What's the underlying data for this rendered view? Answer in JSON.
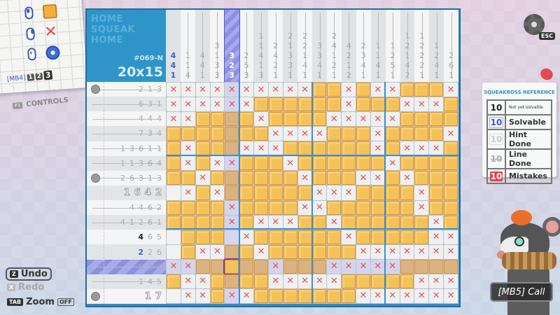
{
  "puzzle": {
    "title_lines": [
      "HOME",
      "SQUEAK",
      "HOME"
    ],
    "code": "#069-N",
    "size": "20x15",
    "highlighted_column": 5,
    "highlighted_row": 13,
    "cursor": {
      "row": 13,
      "col": 5
    }
  },
  "controls": {
    "mb4_label": "[MB4]",
    "mb4_options": [
      "1",
      "2",
      "3"
    ],
    "mb4_selected": "3",
    "controls_key": "F1",
    "controls_label": "CONTROLS",
    "tools": [
      {
        "mouse": "left-click",
        "action": "fill"
      },
      {
        "mouse": "right-click",
        "action": "cross"
      },
      {
        "mouse": "middle-click",
        "action": "dot"
      }
    ]
  },
  "actions": {
    "undo_key": "Z",
    "undo_label": "Undo",
    "redo_key": "X",
    "redo_label": "Redo",
    "zoom_key": "TAB",
    "zoom_label": "Zoom",
    "zoom_state": "OFF"
  },
  "column_clues": [
    {
      "nums": [
        "4",
        "4",
        "1"
      ],
      "state": "solvable"
    },
    {
      "nums": [
        "1",
        "1",
        "4"
      ],
      "state": "done"
    },
    {
      "nums": [
        "4",
        "4",
        "1"
      ],
      "state": "done"
    },
    {
      "nums": [
        "3",
        "1",
        "3",
        "3"
      ],
      "state": "done"
    },
    {
      "nums": [
        "3",
        "2",
        "3"
      ],
      "state": "highlighted"
    },
    {
      "nums": [
        "2",
        "5",
        "3"
      ],
      "state": "done"
    },
    {
      "nums": [
        "1",
        "1",
        "4",
        "1",
        "3"
      ],
      "state": "done"
    },
    {
      "nums": [
        "2",
        "4",
        "2",
        "1"
      ],
      "state": "done"
    },
    {
      "nums": [
        "2",
        "1",
        "3",
        "3",
        "1"
      ],
      "state": "done"
    },
    {
      "nums": [
        "2",
        "2",
        "1",
        "4",
        "1"
      ],
      "state": "done"
    },
    {
      "nums": [
        "3",
        "3",
        "4",
        "1"
      ],
      "state": "done"
    },
    {
      "nums": [
        "2",
        "4",
        "1",
        "2",
        "1"
      ],
      "state": "done"
    },
    {
      "nums": [
        "4",
        "2",
        "1",
        "2"
      ],
      "state": "done"
    },
    {
      "nums": [
        "2",
        "3",
        "4",
        "1"
      ],
      "state": "done"
    },
    {
      "nums": [
        "1",
        "1",
        "4",
        "1"
      ],
      "state": "done"
    },
    {
      "nums": [
        "1",
        "2",
        "5",
        "1"
      ],
      "state": "done"
    },
    {
      "nums": [
        "1",
        "2",
        "1",
        "4",
        "2"
      ],
      "state": "done"
    },
    {
      "nums": [
        "1",
        "2",
        "2",
        "2",
        "1"
      ],
      "state": "done"
    },
    {
      "nums": [
        "1",
        "2",
        "4",
        "1"
      ],
      "state": "done"
    },
    {
      "nums": [
        "2",
        "6",
        "1"
      ],
      "state": "done"
    }
  ],
  "row_clues": [
    {
      "nums": [
        "2",
        "1",
        "3"
      ],
      "state": "done"
    },
    {
      "nums": [
        "6",
        "3",
        "1"
      ],
      "state": "done"
    },
    {
      "nums": [
        "4",
        "4",
        "4"
      ],
      "state": "done"
    },
    {
      "nums": [
        "7",
        "3",
        "4"
      ],
      "state": "done"
    },
    {
      "nums": [
        "1",
        "3",
        "6",
        "1",
        "1"
      ],
      "state": "done"
    },
    {
      "nums": [
        "1",
        "1",
        "3",
        "6",
        "4"
      ],
      "state": "done"
    },
    {
      "nums": [
        "2",
        "6",
        "3",
        "1",
        "3"
      ],
      "state": "done"
    },
    {
      "nums": [
        "1",
        "6",
        "4",
        "2"
      ],
      "state": "hint"
    },
    {
      "nums": [
        "4",
        "4",
        "6",
        "2"
      ],
      "state": "done"
    },
    {
      "nums": [
        "4",
        "1",
        "2",
        "6",
        "1"
      ],
      "state": "done"
    },
    {
      "nums": [
        "4",
        "6",
        "5"
      ],
      "state": "partial-first-unsolvable"
    },
    {
      "nums": [
        "2",
        "2",
        "6"
      ],
      "state": "partial-first-solvable"
    },
    {
      "nums": [
        "5",
        "3",
        "4"
      ],
      "state": "highlighted"
    },
    {
      "nums": [
        "1",
        "4",
        "5"
      ],
      "state": "done"
    },
    {
      "nums": [
        "1",
        "7"
      ],
      "state": "hint"
    }
  ],
  "grid": [
    "XXXXXXXXXXFFXFXXFFFX",
    "XXXXXXFFFFFFXFFFXXXF",
    "XXFFFFXFFFFXXXXXFFFF",
    "FFFFFFFXXXXFFFXFFFFX",
    "FXFFFXXXFFFFFFXFXXXF",
    "FXFXXFFFXFFFFFFXFFFF",
    "FFXFFFFFFXFFFXXFXFFF",
    "EXFXFFFFFFXXXFFFFXFF",
    "FFFFXFFFFXXFFFFFFXFF",
    "FFFFXFXXXFFXFFFFFFXF",
    "EFFFEXFFFFFFXFFFFFXX",
    "EFXXFFXFFFFFFXXXXXXX",
    "XXFFFFFXFFFXXXXXFFFF",
    "FXXFFFFXXXXXFFFFFXXX",
    "EXXFXXFFFFFFFXXXXXXX"
  ],
  "reference": {
    "title": "SQUEAKROSS REFERENCE",
    "items": [
      {
        "symbol": "10",
        "label": "Not yet solvable"
      },
      {
        "symbol": "10",
        "label": "Solvable"
      },
      {
        "symbol": "10",
        "label": "Hint Done"
      },
      {
        "symbol": "10",
        "label": "Line Done"
      },
      {
        "symbol": "10",
        "label": "Mistakes"
      }
    ]
  },
  "settings": {
    "key": "ESC"
  },
  "call": {
    "label": "[MB5] Call"
  },
  "colors": {
    "board_blue": "#2f8fc6",
    "fill_orange": "#f4c25a",
    "cross_red": "#e4554e",
    "solvable_blue": "#3c5bd0",
    "highlight_purple": "#8d8fe0"
  }
}
